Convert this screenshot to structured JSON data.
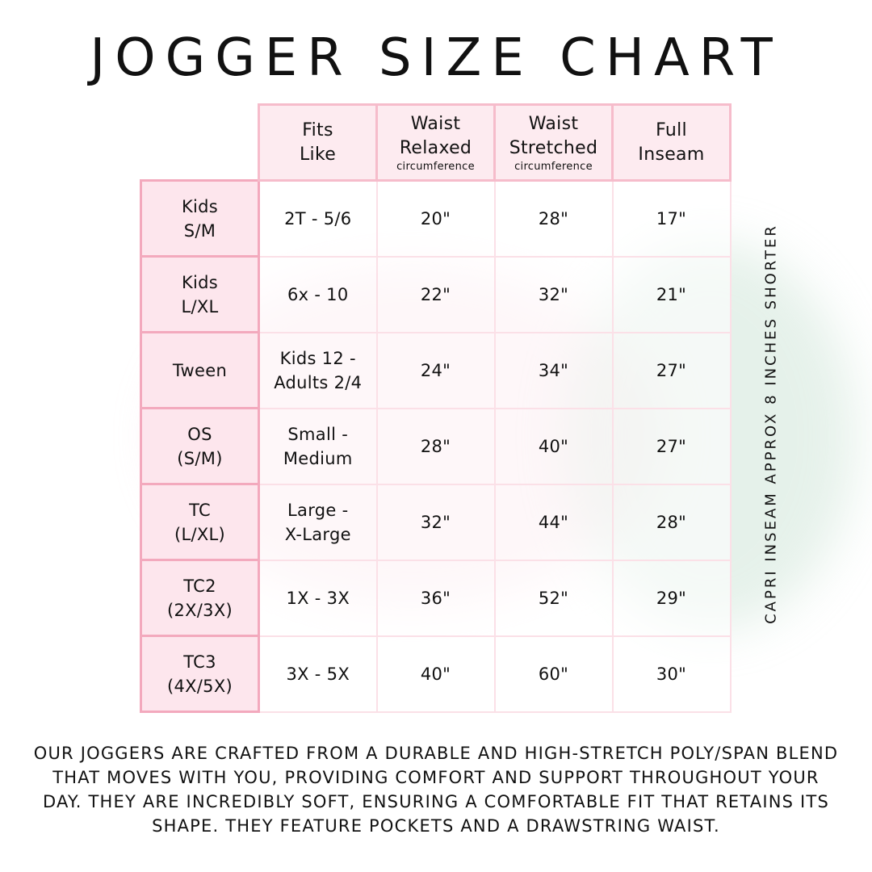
{
  "title": "JOGGER SIZE CHART",
  "columns": [
    {
      "line1": "Fits",
      "line2": "Like",
      "sub": ""
    },
    {
      "line1": "Waist",
      "line2": "Relaxed",
      "sub": "circumference"
    },
    {
      "line1": "Waist",
      "line2": "Stretched",
      "sub": "circumference"
    },
    {
      "line1": "Full",
      "line2": "Inseam",
      "sub": ""
    }
  ],
  "rows": [
    {
      "size1": "Kids",
      "size2": "S/M",
      "fits1": "2T - 5/6",
      "fits2": "",
      "relaxed": "20\"",
      "stretched": "28\"",
      "inseam": "17\""
    },
    {
      "size1": "Kids",
      "size2": "L/XL",
      "fits1": "6x - 10",
      "fits2": "",
      "relaxed": "22\"",
      "stretched": "32\"",
      "inseam": "21\""
    },
    {
      "size1": "Tween",
      "size2": "",
      "fits1": "Kids 12 -",
      "fits2": "Adults 2/4",
      "relaxed": "24\"",
      "stretched": "34\"",
      "inseam": "27\""
    },
    {
      "size1": "OS",
      "size2": "(S/M)",
      "fits1": "Small -",
      "fits2": "Medium",
      "relaxed": "28\"",
      "stretched": "40\"",
      "inseam": "27\""
    },
    {
      "size1": "TC",
      "size2": "(L/XL)",
      "fits1": "Large -",
      "fits2": "X-Large",
      "relaxed": "32\"",
      "stretched": "44\"",
      "inseam": "28\""
    },
    {
      "size1": "TC2",
      "size2": "(2X/3X)",
      "fits1": "1X - 3X",
      "fits2": "",
      "relaxed": "36\"",
      "stretched": "52\"",
      "inseam": "29\""
    },
    {
      "size1": "TC3",
      "size2": "(4X/5X)",
      "fits1": "3X - 5X",
      "fits2": "",
      "relaxed": "40\"",
      "stretched": "60\"",
      "inseam": "30\""
    }
  ],
  "side_note": "CAPRI INSEAM APPROX 8 INCHES SHORTER",
  "description": "Our joggers are crafted from a durable and high-stretch poly/span blend that moves with you, providing comfort and support throughout your day. They are incredibly soft, ensuring a comfortable fit that retains its shape. They feature pockets and a drawstring waist.",
  "colors": {
    "header_bg": "#fdebf0",
    "header_border": "#f6bccb",
    "row_header_border": "#f3a9bd",
    "cell_border": "#fbe0e7"
  }
}
